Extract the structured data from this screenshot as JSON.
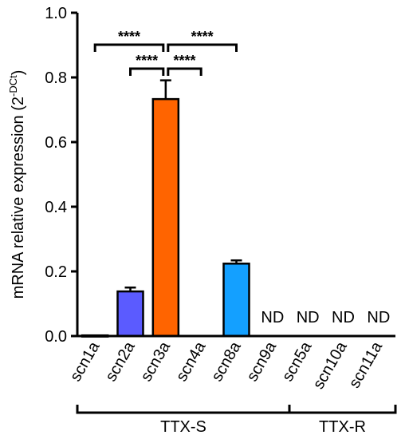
{
  "chart_data": {
    "type": "bar",
    "categories": [
      "scn1a",
      "scn2a",
      "scn3a",
      "scn4a",
      "scn8a",
      "scn9a",
      "scn5a",
      "scn10a",
      "scn11a"
    ],
    "values": [
      0.002,
      0.138,
      0.733,
      0,
      0.224,
      0,
      0,
      0,
      0
    ],
    "errors": [
      0,
      0.012,
      0.058,
      0,
      0.01,
      0,
      0,
      0,
      0
    ],
    "bar_colors": [
      "#9a9a9a",
      "#5b5bff",
      "#ff6400",
      "#ffffff",
      "#14a0ff",
      "#ffffff",
      "#ffffff",
      "#ffffff",
      "#ffffff"
    ],
    "ylabel": "mRNA relative expression (2",
    "ylabel_sup": "-DCt",
    "ylabel_end": ")",
    "ylim": [
      0,
      1.0
    ],
    "yticks": [
      "0.0",
      "0.2",
      "0.4",
      "0.6",
      "0.8",
      "1.0"
    ],
    "nd_label": "ND",
    "nd_categories": [
      "scn9a",
      "scn5a",
      "scn10a",
      "scn11a"
    ],
    "groups": [
      {
        "label": "TTX-S",
        "members": [
          "scn1a",
          "scn2a",
          "scn3a",
          "scn4a",
          "scn8a",
          "scn9a"
        ]
      },
      {
        "label": "TTX-R",
        "members": [
          "scn5a",
          "scn10a",
          "scn11a"
        ]
      }
    ],
    "significance": [
      {
        "from": "scn1a",
        "to": "scn3a",
        "label": "****"
      },
      {
        "from": "scn3a",
        "to": "scn8a",
        "label": "****"
      },
      {
        "from": "scn2a",
        "to": "scn3a",
        "label": "****"
      },
      {
        "from": "scn3a",
        "to": "scn4a",
        "label": "****"
      }
    ]
  }
}
